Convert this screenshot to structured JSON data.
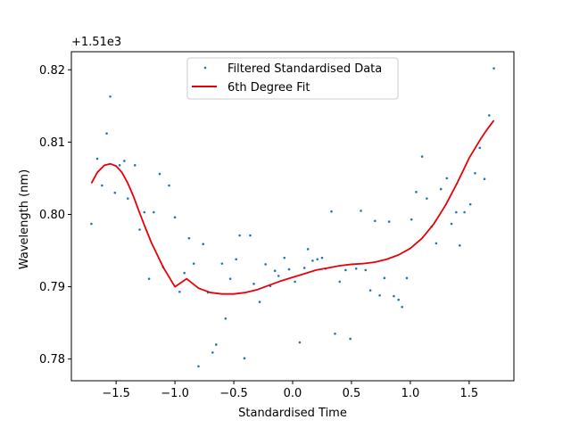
{
  "chart_data": {
    "type": "scatter",
    "xlabel": "Standardised Time",
    "ylabel": "Wavelength (nm)",
    "offset_label": "+1.51e3",
    "xlim": [
      -1.88,
      1.88
    ],
    "ylim": [
      0.777,
      0.8225
    ],
    "xticks": [
      -1.5,
      -1.0,
      -0.5,
      0.0,
      0.5,
      1.0,
      1.5
    ],
    "xtick_labels": [
      "−1.5",
      "−1.0",
      "−0.5",
      "0.0",
      "0.5",
      "1.0",
      "1.5"
    ],
    "yticks": [
      0.78,
      0.79,
      0.8,
      0.81,
      0.82
    ],
    "ytick_labels": [
      "0.78",
      "0.79",
      "0.80",
      "0.81",
      "0.82"
    ],
    "legend_position": "upper-center",
    "colors": {
      "scatter": "#1f77b4",
      "fit": "#e8000b"
    },
    "series": [
      {
        "name": "Filtered Standardised Data",
        "kind": "scatter",
        "points": [
          [
            -1.71,
            0.7987
          ],
          [
            -1.66,
            0.8077
          ],
          [
            -1.62,
            0.804
          ],
          [
            -1.58,
            0.8112
          ],
          [
            -1.55,
            0.8163
          ],
          [
            -1.51,
            0.803
          ],
          [
            -1.47,
            0.8068
          ],
          [
            -1.43,
            0.8074
          ],
          [
            -1.4,
            0.8022
          ],
          [
            -1.34,
            0.8068
          ],
          [
            -1.3,
            0.7979
          ],
          [
            -1.26,
            0.8003
          ],
          [
            -1.22,
            0.7911
          ],
          [
            -1.18,
            0.8003
          ],
          [
            -1.13,
            0.8056
          ],
          [
            -1.1,
            0.7927
          ],
          [
            -1.05,
            0.804
          ],
          [
            -1.0,
            0.7996
          ],
          [
            -0.96,
            0.7893
          ],
          [
            -0.92,
            0.7919
          ],
          [
            -0.88,
            0.7967
          ],
          [
            -0.84,
            0.7932
          ],
          [
            -0.8,
            0.779
          ],
          [
            -0.76,
            0.7959
          ],
          [
            -0.72,
            0.7892
          ],
          [
            -0.68,
            0.7809
          ],
          [
            -0.65,
            0.782
          ],
          [
            -0.6,
            0.7932
          ],
          [
            -0.57,
            0.7856
          ],
          [
            -0.53,
            0.7911
          ],
          [
            -0.48,
            0.7938
          ],
          [
            -0.45,
            0.7971
          ],
          [
            -0.41,
            0.7801
          ],
          [
            -0.36,
            0.7971
          ],
          [
            -0.33,
            0.7904
          ],
          [
            -0.28,
            0.7879
          ],
          [
            -0.23,
            0.7931
          ],
          [
            -0.19,
            0.7901
          ],
          [
            -0.15,
            0.7922
          ],
          [
            -0.12,
            0.7915
          ],
          [
            -0.07,
            0.794
          ],
          [
            -0.03,
            0.7924
          ],
          [
            0.02,
            0.7907
          ],
          [
            0.06,
            0.7823
          ],
          [
            0.1,
            0.7926
          ],
          [
            0.13,
            0.7952
          ],
          [
            0.17,
            0.7936
          ],
          [
            0.21,
            0.7938
          ],
          [
            0.25,
            0.794
          ],
          [
            0.28,
            0.7925
          ],
          [
            0.33,
            0.8004
          ],
          [
            0.36,
            0.7835
          ],
          [
            0.4,
            0.7907
          ],
          [
            0.45,
            0.7923
          ],
          [
            0.49,
            0.7828
          ],
          [
            0.54,
            0.7925
          ],
          [
            0.58,
            0.8005
          ],
          [
            0.62,
            0.7923
          ],
          [
            0.66,
            0.7895
          ],
          [
            0.7,
            0.7991
          ],
          [
            0.74,
            0.7888
          ],
          [
            0.78,
            0.7912
          ],
          [
            0.82,
            0.799
          ],
          [
            0.86,
            0.7887
          ],
          [
            0.9,
            0.7882
          ],
          [
            0.93,
            0.7872
          ],
          [
            0.97,
            0.7912
          ],
          [
            1.01,
            0.7993
          ],
          [
            1.05,
            0.8031
          ],
          [
            1.1,
            0.808
          ],
          [
            1.14,
            0.8022
          ],
          [
            1.18,
            0.7983
          ],
          [
            1.22,
            0.796
          ],
          [
            1.26,
            0.8035
          ],
          [
            1.31,
            0.805
          ],
          [
            1.35,
            0.7987
          ],
          [
            1.39,
            0.8003
          ],
          [
            1.42,
            0.7957
          ],
          [
            1.46,
            0.8003
          ],
          [
            1.51,
            0.8014
          ],
          [
            1.55,
            0.8057
          ],
          [
            1.59,
            0.8092
          ],
          [
            1.63,
            0.8049
          ],
          [
            1.67,
            0.8137
          ],
          [
            1.71,
            0.8202
          ]
        ]
      },
      {
        "name": "6th Degree Fit",
        "kind": "line",
        "points": [
          [
            -1.71,
            0.8043
          ],
          [
            -1.66,
            0.8058
          ],
          [
            -1.6,
            0.8068
          ],
          [
            -1.55,
            0.807
          ],
          [
            -1.5,
            0.8067
          ],
          [
            -1.45,
            0.8058
          ],
          [
            -1.4,
            0.8043
          ],
          [
            -1.35,
            0.8024
          ],
          [
            -1.3,
            0.8002
          ],
          [
            -1.25,
            0.7981
          ],
          [
            -1.2,
            0.7961
          ],
          [
            -1.1,
            0.7927
          ],
          [
            -1.0,
            0.79
          ],
          [
            -0.9,
            0.7911
          ],
          [
            -0.8,
            0.7898
          ],
          [
            -0.7,
            0.7892
          ],
          [
            -0.6,
            0.789
          ],
          [
            -0.5,
            0.789
          ],
          [
            -0.4,
            0.7892
          ],
          [
            -0.3,
            0.7896
          ],
          [
            -0.2,
            0.7902
          ],
          [
            -0.1,
            0.7908
          ],
          [
            0.0,
            0.7913
          ],
          [
            0.1,
            0.7918
          ],
          [
            0.2,
            0.7923
          ],
          [
            0.3,
            0.7926
          ],
          [
            0.4,
            0.7929
          ],
          [
            0.5,
            0.7931
          ],
          [
            0.6,
            0.7932
          ],
          [
            0.7,
            0.7934
          ],
          [
            0.8,
            0.7938
          ],
          [
            0.9,
            0.7944
          ],
          [
            1.0,
            0.7953
          ],
          [
            1.1,
            0.7967
          ],
          [
            1.2,
            0.7987
          ],
          [
            1.3,
            0.8013
          ],
          [
            1.4,
            0.8044
          ],
          [
            1.5,
            0.8078
          ],
          [
            1.6,
            0.8105
          ],
          [
            1.65,
            0.8117
          ],
          [
            1.71,
            0.813
          ]
        ]
      }
    ]
  }
}
